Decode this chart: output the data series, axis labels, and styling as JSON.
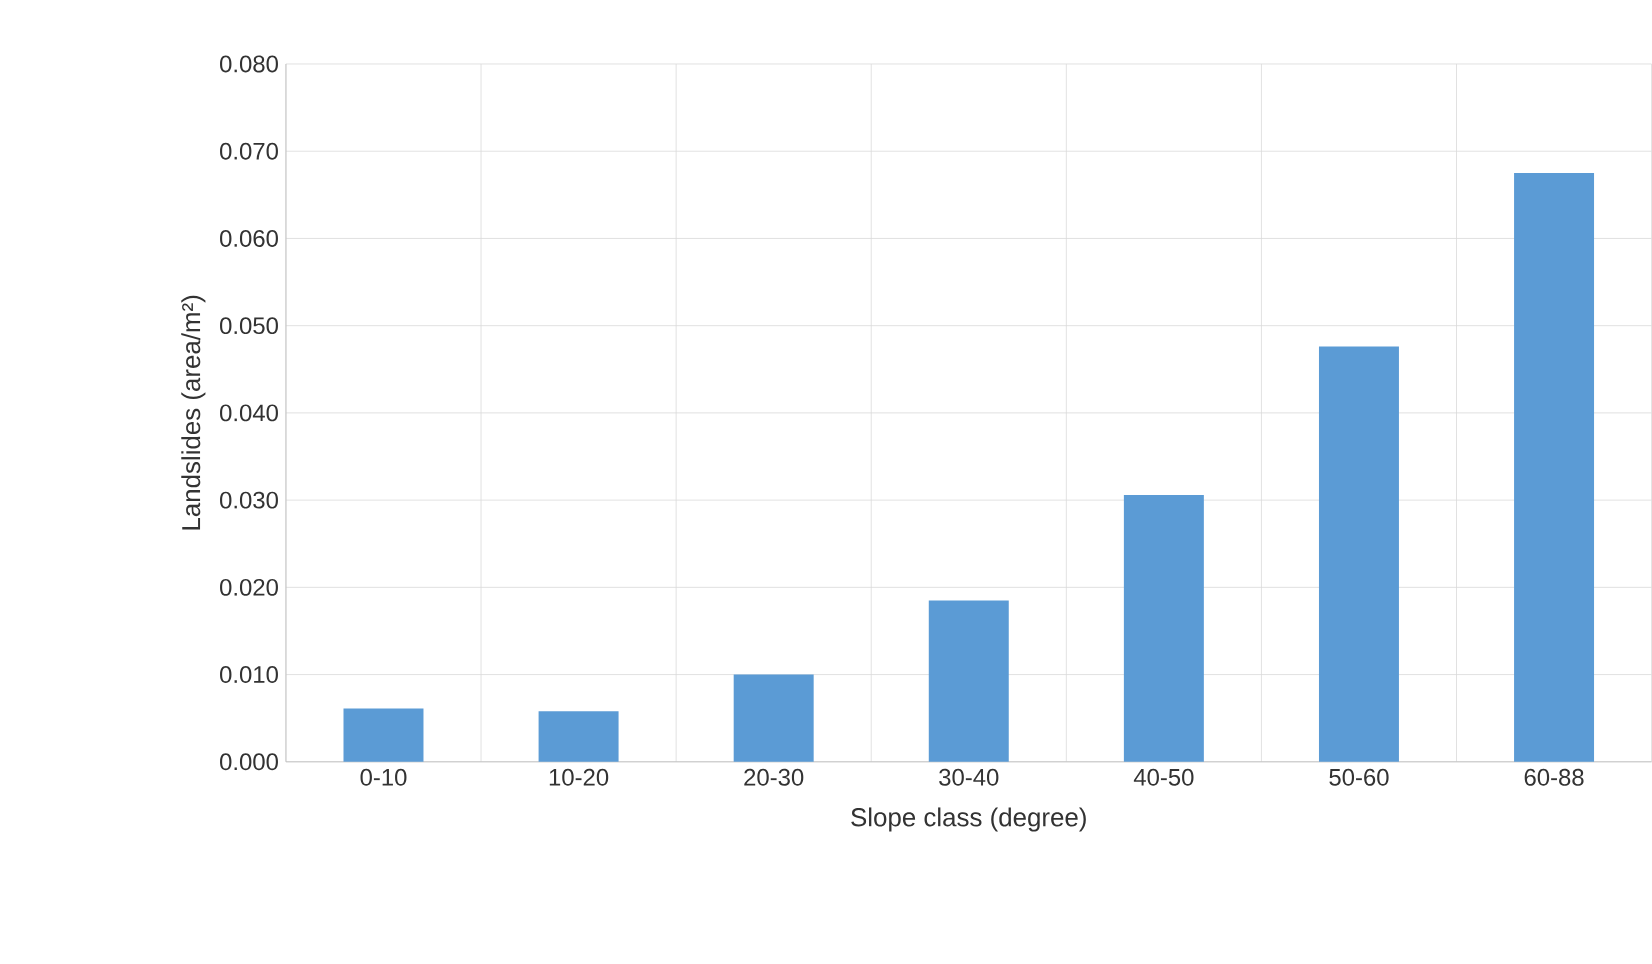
{
  "chart_data": {
    "type": "bar",
    "xlabel": "Slope class (degree)",
    "ylabel": "Landslides (area/m²)",
    "categories": [
      "0-10",
      "10-20",
      "20-30",
      "30-40",
      "40-50",
      "50-60",
      "60-88"
    ],
    "values": [
      0.0061,
      0.0058,
      0.01,
      0.0185,
      0.0306,
      0.0476,
      0.0675
    ],
    "color": "#5b9bd5",
    "ylim": [
      0,
      0.08
    ],
    "yticks": [
      {
        "value": 0,
        "label": "0.000"
      },
      {
        "value": 0.01,
        "label": "0.010"
      },
      {
        "value": 0.02,
        "label": "0.020"
      },
      {
        "value": 0.03,
        "label": "0.030"
      },
      {
        "value": 0.04,
        "label": "0.040"
      },
      {
        "value": 0.05,
        "label": "0.050"
      },
      {
        "value": 0.06,
        "label": "0.060"
      },
      {
        "value": 0.07,
        "label": "0.070"
      },
      {
        "value": 0.08,
        "label": "0.080"
      }
    ],
    "grid": true
  }
}
